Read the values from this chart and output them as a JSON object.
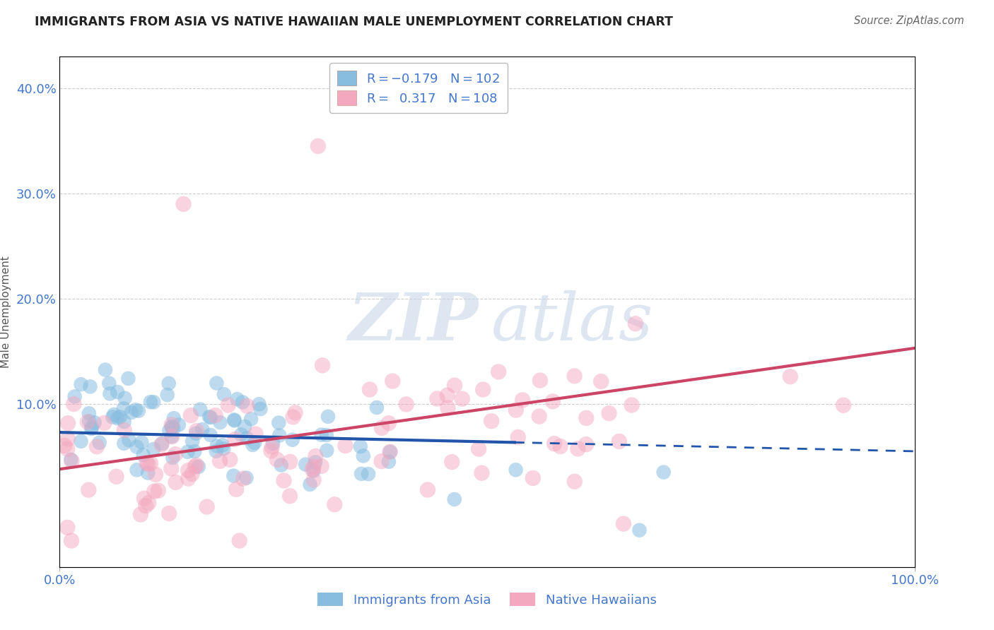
{
  "title": "IMMIGRANTS FROM ASIA VS NATIVE HAWAIIAN MALE UNEMPLOYMENT CORRELATION CHART",
  "source": "Source: ZipAtlas.com",
  "ylabel": "Male Unemployment",
  "yticks": [
    "10.0%",
    "20.0%",
    "30.0%",
    "40.0%"
  ],
  "ytick_vals": [
    0.1,
    0.2,
    0.3,
    0.4
  ],
  "blue_color": "#88bde0",
  "pink_color": "#f4a8c0",
  "blue_line_color": "#2255aa",
  "pink_line_color": "#cc4466",
  "blue_R": -0.179,
  "blue_N": 102,
  "pink_R": 0.317,
  "pink_N": 108,
  "watermark_zip": "ZIP",
  "watermark_atlas": "atlas",
  "background_color": "#ffffff",
  "grid_color": "#cccccc",
  "axis_color": "#4477cc",
  "title_color": "#222222",
  "legend_text_color": "#333333",
  "seed_blue": 42,
  "seed_pink": 7
}
